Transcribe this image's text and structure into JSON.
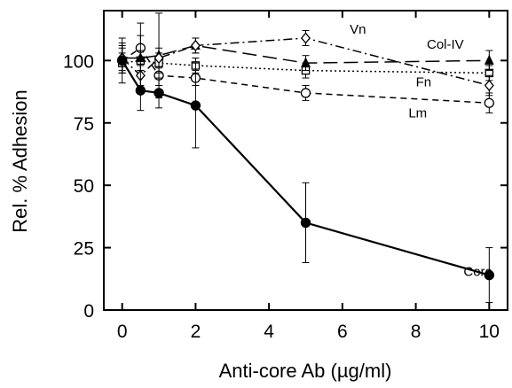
{
  "chart_data": {
    "type": "line",
    "xlabel": "Anti-core Ab (µg/ml)",
    "ylabel": "Rel. % Adhesion",
    "xlim": [
      -0.5,
      10.5
    ],
    "ylim": [
      0,
      120
    ],
    "x_ticks": [
      0,
      2,
      4,
      6,
      8,
      10
    ],
    "y_ticks": [
      0,
      25,
      50,
      75,
      100
    ],
    "grid": false,
    "legend": "none",
    "series": [
      {
        "name": "Core",
        "line_style": "solid",
        "marker": "filled-circle",
        "label_pos": [
          9.3,
          15.5
        ],
        "points": [
          {
            "x": 0,
            "y": 100,
            "err": 9
          },
          {
            "x": 0.5,
            "y": 88,
            "err": 8
          },
          {
            "x": 1,
            "y": 87,
            "err": 6
          },
          {
            "x": 2,
            "y": 82,
            "err": 17
          },
          {
            "x": 5,
            "y": 35,
            "err": 16
          },
          {
            "x": 10,
            "y": 14,
            "err": 11
          }
        ]
      },
      {
        "name": "Vn",
        "line_style": "dash-dot",
        "marker": "open-diamond",
        "label_pos": [
          6.2,
          112.5
        ],
        "points": [
          {
            "x": 0,
            "y": 101,
            "err": 5
          },
          {
            "x": 0.5,
            "y": 94,
            "err": 4
          },
          {
            "x": 1,
            "y": 101,
            "err": 4
          },
          {
            "x": 2,
            "y": 106,
            "err": 3
          },
          {
            "x": 5,
            "y": 109,
            "err": 3
          },
          {
            "x": 10,
            "y": 90,
            "err": 4
          }
        ]
      },
      {
        "name": "Col-IV",
        "line_style": "long-dash",
        "marker": "filled-triangle",
        "label_pos": [
          8.3,
          106.5
        ],
        "points": [
          {
            "x": 0,
            "y": 101,
            "err": 6
          },
          {
            "x": 0.5,
            "y": 101,
            "err": 14
          },
          {
            "x": 1,
            "y": 102,
            "err": 17
          },
          {
            "x": 2,
            "y": 106,
            "err": 3
          },
          {
            "x": 5,
            "y": 99,
            "err": 3
          },
          {
            "x": 10,
            "y": 100,
            "err": 4
          }
        ]
      },
      {
        "name": "Fn",
        "line_style": "dotted",
        "marker": "open-square",
        "label_pos": [
          8.0,
          91.5
        ],
        "points": [
          {
            "x": 0,
            "y": 99,
            "err": 4
          },
          {
            "x": 0.5,
            "y": 100,
            "err": 4
          },
          {
            "x": 1,
            "y": 99,
            "err": 4
          },
          {
            "x": 2,
            "y": 98,
            "err": 3
          },
          {
            "x": 5,
            "y": 96,
            "err": 3
          },
          {
            "x": 10,
            "y": 95,
            "err": 3
          }
        ]
      },
      {
        "name": "Lm",
        "line_style": "dashed",
        "marker": "open-circle",
        "label_pos": [
          7.8,
          79
        ],
        "points": [
          {
            "x": 0,
            "y": 100,
            "err": 5
          },
          {
            "x": 0.5,
            "y": 105,
            "err": 5
          },
          {
            "x": 1,
            "y": 94,
            "err": 4
          },
          {
            "x": 2,
            "y": 93,
            "err": 3
          },
          {
            "x": 5,
            "y": 87,
            "err": 3
          },
          {
            "x": 10,
            "y": 83,
            "err": 4
          }
        ]
      }
    ]
  }
}
